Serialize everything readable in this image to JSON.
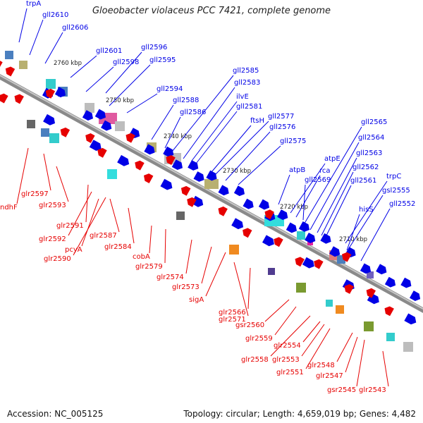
{
  "title": "Gloeobacter violaceus PCC 7421, complete genome",
  "footer": {
    "accession": "Accession: NC_005125",
    "summary": "Topology: circular; Length: 4,659,019 bp; Genes: 4,482"
  },
  "scale_labels": [
    "2760 kbp",
    "2750 kbp",
    "2740 kbp",
    "2730 kbp",
    "2720 kbp",
    "2710 kbp"
  ],
  "forward_genes": [
    "trpA",
    "gll2610",
    "gll2606",
    "gll2601",
    "gll2598",
    "gll2596",
    "gll2595",
    "gll2594",
    "gll2588",
    "gll2586",
    "gll2585",
    "gll2583",
    "ilvE",
    "gll2581",
    "ftsH",
    "gll2577",
    "gll2576",
    "gll2575",
    "atpB",
    "atpE",
    "rca",
    "gll2569",
    "gll2565",
    "gll2564",
    "gll2563",
    "gll2562",
    "gll2561",
    "trpC",
    "gsl2555",
    "hisS",
    "gll2552"
  ],
  "reverse_genes": [
    "glr2597",
    "ndhF",
    "glr2593",
    "glr2591",
    "glr2592",
    "pcyA",
    "glr2587",
    "glr2590",
    "glr2584",
    "cobA",
    "glr2579",
    "glr2574",
    "glr2573",
    "sigA",
    "glr2571",
    "glr2566",
    "gsr2560",
    "glr2559",
    "glr2558",
    "glr2554",
    "glr2553",
    "glr2551",
    "glr2548",
    "glr2547",
    "gsr2545",
    "glr2543"
  ],
  "colors": {
    "forward": "#0000e6",
    "reverse": "#e60000",
    "backbone": "#888888",
    "tick": "#1a8a1a"
  }
}
